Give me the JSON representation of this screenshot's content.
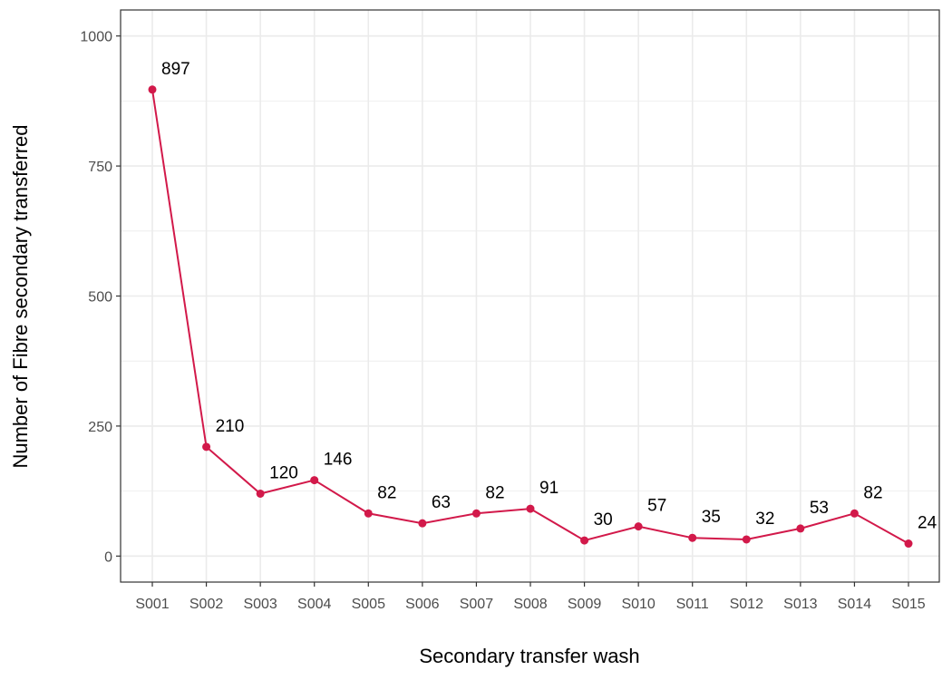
{
  "chart_data": {
    "type": "line",
    "title": "",
    "xlabel": "Secondary transfer wash",
    "ylabel": "Number of Fibre secondary transferred",
    "categories": [
      "S001",
      "S002",
      "S003",
      "S004",
      "S005",
      "S006",
      "S007",
      "S008",
      "S009",
      "S010",
      "S011",
      "S012",
      "S013",
      "S014",
      "S015"
    ],
    "series": [
      {
        "values": [
          897,
          210,
          120,
          146,
          82,
          63,
          82,
          91,
          30,
          57,
          35,
          32,
          53,
          82,
          24
        ]
      }
    ],
    "data_labels": [
      "897",
      "210",
      "120",
      "146",
      "82",
      "63",
      "82",
      "91",
      "30",
      "57",
      "35",
      "32",
      "53",
      "82",
      "24"
    ],
    "ylim": [
      -50,
      1050
    ],
    "yticks": [
      0,
      250,
      500,
      750,
      1000
    ],
    "ytick_labels": [
      "0",
      "250",
      "500",
      "750",
      "1000"
    ],
    "grid": true,
    "legend": "none",
    "colors": {
      "line": "#d2194a",
      "grid": "#ebebeb",
      "border": "#333333",
      "tick_text": "#4d4d4d"
    }
  }
}
